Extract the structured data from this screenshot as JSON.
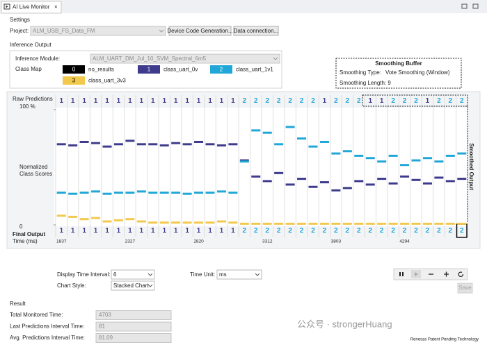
{
  "tab": {
    "title": "AI Live Monitor"
  },
  "settings": {
    "heading": "Settings",
    "project_label": "Project:",
    "project_value": "ALM_USB_FS_Data_FM",
    "buttons": [
      "Device Code Generation...",
      "Data connection..."
    ]
  },
  "inference_output": {
    "heading": "Inference Output",
    "module_label": "Inference Module:",
    "module_value": "ALM_UART_DM_Jul_10_SVM_Spectral_6m5",
    "class_map_label": "Class Map"
  },
  "smoothing": {
    "title": "Smoothing Buffer",
    "type_label": "Smoothing Type:",
    "type_value": "Vote Smoothing (Window)",
    "length_label": "Smoothing Length: 9"
  },
  "chart_data": {
    "type": "score-columns",
    "raw_label": "Raw Predictions",
    "y_axis_label": [
      "Normalized",
      "Class Scores"
    ],
    "final_label": "Final Output",
    "x_label": "Time (ms)",
    "side_label": "Smoothed Output",
    "ylim": [
      0,
      100
    ],
    "yticks": [
      {
        "value": 100,
        "label": "100 %"
      },
      0
    ],
    "x": [
      1837,
      null,
      null,
      null,
      null,
      null,
      2327,
      null,
      null,
      null,
      null,
      null,
      2820,
      null,
      null,
      null,
      null,
      null,
      3312,
      null,
      null,
      null,
      null,
      null,
      3803,
      null,
      null,
      null,
      null,
      null,
      4294,
      null,
      null,
      null,
      null,
      null
    ],
    "raw_predictions": [
      1,
      1,
      1,
      1,
      1,
      1,
      1,
      1,
      1,
      1,
      1,
      1,
      1,
      1,
      1,
      1,
      2,
      2,
      2,
      2,
      2,
      2,
      2,
      1,
      2,
      2,
      2,
      1,
      1,
      2,
      2,
      2,
      1,
      2,
      2,
      2
    ],
    "final_output": [
      1,
      1,
      1,
      1,
      1,
      1,
      1,
      1,
      1,
      1,
      1,
      1,
      1,
      1,
      1,
      1,
      2,
      2,
      2,
      2,
      2,
      2,
      2,
      2,
      2,
      2,
      2,
      2,
      2,
      2,
      2,
      2,
      2,
      2,
      2,
      2
    ],
    "series": [
      {
        "id": 0,
        "name": "no_results",
        "color": "#000000"
      },
      {
        "id": 1,
        "name": "class_uart_0v",
        "color": "#3e3b8c",
        "values": [
          70,
          69,
          72,
          71,
          68,
          70,
          73,
          70,
          70,
          69,
          71,
          70,
          72,
          70,
          69,
          70,
          56,
          42,
          38,
          45,
          35,
          40,
          33,
          37,
          30,
          32,
          38,
          35,
          40,
          36,
          42,
          39,
          36,
          41,
          38,
          40
        ]
      },
      {
        "id": 2,
        "name": "class_uart_1v1",
        "color": "#20a7d8",
        "values": [
          28,
          27,
          28,
          29,
          27,
          28,
          28,
          29,
          28,
          28,
          28,
          27,
          28,
          28,
          29,
          28,
          55,
          82,
          80,
          70,
          85,
          75,
          68,
          72,
          62,
          64,
          60,
          58,
          55,
          60,
          52,
          56,
          58,
          55,
          60,
          62
        ]
      },
      {
        "id": 3,
        "name": "class_uart_3v3",
        "color": "#f2c94c",
        "values": [
          8,
          7,
          5,
          6,
          3,
          4,
          5,
          3,
          2,
          2,
          2,
          2,
          2,
          2,
          3,
          2,
          1,
          1,
          1,
          1,
          1,
          1,
          1,
          1,
          1,
          1,
          1,
          1,
          1,
          1,
          1,
          1,
          1,
          1,
          1,
          1
        ]
      }
    ]
  },
  "controls": {
    "display_interval_label": "Display Time Interval:",
    "display_interval_value": 6,
    "chart_style_label": "Chart Style:",
    "chart_style_value": "Stacked Chart",
    "time_unit_label": "Time Unit:",
    "time_unit_value": "ms",
    "save": "Save"
  },
  "result": {
    "heading": "Result",
    "rows": [
      {
        "label": "Total Monitored Time:",
        "value": 4703
      },
      {
        "label": "Last Predictions Interval Time:",
        "value": 81
      },
      {
        "label": "Avg. Predictions Interval Time:",
        "value": 81.09
      }
    ]
  },
  "footer": "Renesas Patent Pending Technology",
  "watermark": "公众号 · strongerHuang"
}
